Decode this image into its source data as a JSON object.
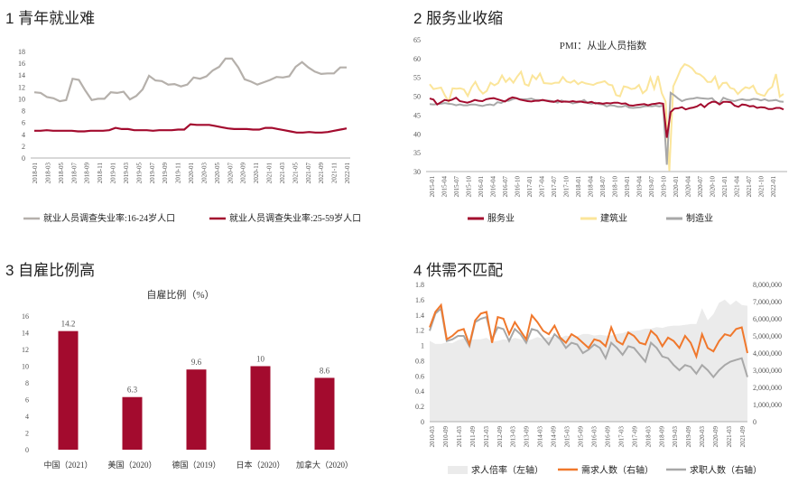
{
  "panels": {
    "p1": {
      "title": "1 青年就业难"
    },
    "p2": {
      "title": "2 服务业收缩"
    },
    "p3": {
      "title": "3 自雇比例高"
    },
    "p4": {
      "title": "4 供需不匹配"
    }
  },
  "colors": {
    "crimson": "#a30b2e",
    "gray": "#b5b0ab",
    "yellow": "#fbe59a",
    "orange": "#f0782c",
    "area": "#ebebeb",
    "line_gray": "#a8a8a8"
  },
  "chart_data": [
    {
      "type": "line",
      "title": "1 青年就业难",
      "ylim": [
        0,
        18
      ],
      "yticks": [
        0,
        2,
        4,
        6,
        8,
        10,
        12,
        14,
        16,
        18
      ],
      "x_tick_labels": [
        "2018-01",
        "2018-03",
        "2018-05",
        "2018-07",
        "2018-09",
        "2018-11",
        "2019-01",
        "2019-03",
        "2019-05",
        "2019-07",
        "2019-09",
        "2019-11",
        "2020-01",
        "2020-03",
        "2020-05",
        "2020-07",
        "2020-09",
        "2020-11",
        "2021-01",
        "2021-03",
        "2021-05",
        "2021-07",
        "2021-09",
        "2021-11",
        "2022-01"
      ],
      "series": [
        {
          "name": "就业人员调查失业率:16-24岁人口",
          "color": "#b5b0ab",
          "values": [
            11.1,
            11.0,
            10.3,
            10.1,
            9.6,
            9.8,
            13.4,
            13.2,
            11.4,
            9.8,
            10.0,
            10.0,
            11.1,
            11.0,
            11.2,
            9.9,
            10.5,
            11.6,
            13.9,
            13.1,
            13.0,
            12.4,
            12.5,
            12.1,
            12.4,
            13.6,
            13.4,
            13.8,
            14.8,
            15.4,
            16.8,
            16.8,
            15.3,
            13.3,
            12.9,
            12.4,
            12.8,
            13.2,
            13.7,
            13.6,
            13.8,
            15.4,
            16.2,
            15.3,
            14.6,
            14.2,
            14.3,
            14.3,
            15.3,
            15.3
          ]
        },
        {
          "name": "就业人员调查失业率:25-59岁人口",
          "color": "#a30b2e",
          "values": [
            4.6,
            4.6,
            4.7,
            4.6,
            4.6,
            4.6,
            4.6,
            4.5,
            4.5,
            4.6,
            4.6,
            4.6,
            4.7,
            5.1,
            4.9,
            4.9,
            4.7,
            4.7,
            4.7,
            4.6,
            4.7,
            4.7,
            4.7,
            4.8,
            4.8,
            5.7,
            5.6,
            5.6,
            5.6,
            5.4,
            5.2,
            5.0,
            4.9,
            4.9,
            4.9,
            4.8,
            4.8,
            5.1,
            5.1,
            4.9,
            4.7,
            4.5,
            4.3,
            4.3,
            4.4,
            4.3,
            4.3,
            4.4,
            4.6,
            4.8,
            5.0
          ]
        }
      ]
    },
    {
      "type": "line",
      "title": "2 服务业收缩",
      "subtitle": "PMI：从业人员指数",
      "ylim": [
        30,
        65
      ],
      "yticks": [
        30,
        35,
        40,
        45,
        50,
        55,
        60,
        65
      ],
      "x_tick_labels": [
        "2015-01",
        "2015-04",
        "2015-07",
        "2015-10",
        "2016-01",
        "2016-04",
        "2016-07",
        "2016-10",
        "2017-01",
        "2017-04",
        "2017-07",
        "2017-10",
        "2018-01",
        "2018-04",
        "2018-07",
        "2018-10",
        "2019-01",
        "2019-04",
        "2019-07",
        "2019-10",
        "2020-01",
        "2020-04",
        "2020-07",
        "2020-10",
        "2021-01",
        "2021-04",
        "2021-07",
        "2021-10",
        "2022-01"
      ],
      "series": [
        {
          "name": "服务业",
          "color": "#a30b2e",
          "values": [
            49.4,
            49.1,
            47.8,
            48.4,
            49.0,
            48.8,
            49.1,
            49.6,
            48.7,
            48.5,
            48.3,
            48.6,
            49.0,
            48.8,
            48.7,
            49.2,
            49.4,
            49.5,
            49.2,
            48.9,
            48.6,
            49.3,
            49.7,
            49.5,
            49.1,
            48.9,
            48.7,
            48.6,
            48.8,
            48.8,
            49.0,
            48.8,
            48.6,
            48.5,
            48.9,
            48.5,
            48.6,
            48.5,
            48.7,
            48.5,
            48.6,
            48.4,
            48.3,
            48.5,
            48.1,
            48.2,
            48.0,
            48.2,
            48.1,
            48.3,
            48.3,
            48.0,
            48.1,
            47.6,
            47.5,
            47.7,
            47.8,
            47.9,
            47.6,
            47.9,
            48.0,
            48.2,
            48.0,
            39.0,
            45.8,
            46.7,
            46.8,
            47.1,
            46.5,
            46.8,
            47.0,
            47.3,
            47.9,
            47.1,
            48.0,
            48.5,
            48.5,
            47.8,
            48.5,
            48.5,
            48.4,
            47.5,
            47.2,
            47.8,
            47.7,
            47.3,
            47.4,
            46.9,
            47.1,
            47.0,
            46.6,
            46.6,
            46.9,
            46.9,
            46.5
          ]
        },
        {
          "name": "建筑业",
          "color": "#fbe59a",
          "values": [
            53.2,
            51.9,
            52.1,
            52.3,
            50.2,
            48.6,
            52.1,
            52.0,
            52.1,
            51.8,
            50.1,
            52.4,
            53.8,
            51.8,
            50.7,
            51.4,
            53.6,
            52.9,
            53.5,
            55.5,
            53.8,
            54.8,
            53.6,
            55.2,
            56.5,
            53.2,
            52.8,
            55.5,
            54.5,
            56.0,
            53.5,
            53.4,
            53.3,
            53.6,
            53.6,
            55.1,
            53.9,
            53.6,
            54.2,
            53.2,
            53.8,
            53.4,
            53.2,
            53.0,
            53.5,
            53.7,
            54.0,
            53.1,
            52.9,
            50.3,
            50.0,
            52.6,
            52.4,
            51.9,
            52.1,
            53.0,
            50.8,
            51.7,
            54.9,
            52.0,
            55.4,
            50.8,
            48.6,
            30.2,
            52.6,
            54.8,
            57.2,
            58.5,
            58.1,
            57.4,
            56.1,
            55.8,
            55.0,
            53.8,
            53.8,
            55.2,
            52.1,
            53.5,
            53.6,
            52.2,
            51.9,
            50.6,
            51.6,
            52.4,
            52.1,
            52.8,
            50.8,
            50.4,
            50.1,
            51.7,
            52.5,
            55.9,
            49.9,
            50.6
          ]
        },
        {
          "name": "制造业",
          "color": "#a8a8a8",
          "values": [
            47.9,
            47.8,
            47.9,
            48.0,
            48.2,
            48.0,
            47.9,
            47.6,
            47.8,
            47.6,
            47.6,
            47.8,
            47.8,
            47.6,
            47.4,
            47.7,
            47.8,
            47.6,
            48.4,
            48.2,
            48.8,
            48.8,
            49.2,
            49.5,
            49.2,
            49.2,
            49.2,
            49.4,
            49.0,
            49.0,
            48.9,
            48.9,
            48.8,
            48.6,
            48.3,
            48.9,
            48.5,
            48.5,
            48.1,
            48.3,
            48.5,
            49.0,
            48.2,
            48.0,
            48.3,
            47.9,
            47.8,
            47.3,
            47.6,
            47.5,
            47.2,
            47.2,
            47.5,
            47.0,
            46.9,
            47.0,
            47.1,
            47.3,
            47.4,
            47.3,
            47.5,
            47.3,
            47.5,
            31.8,
            50.9,
            50.2,
            49.4,
            48.7,
            49.1,
            49.3,
            49.4,
            49.6,
            49.5,
            49.4,
            49.3,
            49.5,
            48.4,
            48.1,
            49.6,
            49.2,
            48.9,
            48.7,
            49.0,
            49.2,
            49.0,
            49.0,
            49.3,
            49.2,
            48.9,
            49.2,
            48.8,
            48.9,
            49.0,
            48.6,
            48.5
          ]
        }
      ]
    },
    {
      "type": "bar",
      "title": "自雇比例（%）",
      "categories": [
        "中国（2021）",
        "美国（2020）",
        "德国（2019）",
        "日本（2020）",
        "加拿大（2020）"
      ],
      "values": [
        14.2,
        6.3,
        9.6,
        10,
        8.6
      ],
      "value_labels": [
        "14.2",
        "6.3",
        "9.6",
        "10",
        "8.6"
      ],
      "ylim": [
        0,
        16
      ],
      "yticks": [
        0,
        2,
        4,
        6,
        8,
        10,
        12,
        14,
        16
      ]
    },
    {
      "type": "area",
      "title": "4 供需不匹配",
      "ylim_left": [
        0,
        1.8
      ],
      "ylim_right": [
        0,
        8000000
      ],
      "yticks_left": [
        0,
        0.2,
        0.4,
        0.6,
        0.8,
        1.0,
        1.2,
        1.4,
        1.6,
        1.8
      ],
      "ytick_labels_left": [
        "0",
        "0.2",
        "0.4",
        "0.6",
        "0.8",
        "1",
        "1.2",
        "1.4",
        "1.6",
        "1.8"
      ],
      "yticks_right": [
        0,
        1000000,
        2000000,
        3000000,
        4000000,
        5000000,
        6000000,
        7000000,
        8000000
      ],
      "ytick_labels_right": [
        "0",
        "1,000,000",
        "2,000,000",
        "3,000,000",
        "4,000,000",
        "5,000,000",
        "6,000,000",
        "7,000,000",
        "8,000,000"
      ],
      "x_tick_labels": [
        "2010-03",
        "2010-09",
        "2011-03",
        "2011-09",
        "2012-03",
        "2012-09",
        "2013-03",
        "2013-09",
        "2014-03",
        "2014-09",
        "2015-03",
        "2015-09",
        "2016-03",
        "2016-09",
        "2017-03",
        "2017-09",
        "2018-03",
        "2018-09",
        "2019-03",
        "2019-09",
        "2020-03",
        "2020-09",
        "2021-03",
        "2021-09"
      ],
      "series": [
        {
          "name": "求人倍率（左轴）",
          "axis": "left",
          "color": "#ebebeb",
          "values": [
            1.06,
            1.02,
            1.02,
            1.04,
            1.03,
            1.07,
            1.09,
            1.07,
            1.08,
            1.08,
            1.1,
            1.05,
            1.06,
            1.08,
            1.07,
            1.1,
            1.08,
            1.06,
            1.08,
            1.11,
            1.09,
            1.11,
            1.11,
            1.1,
            1.13,
            1.12,
            1.12,
            1.15,
            1.15,
            1.13,
            1.14,
            1.13,
            1.13,
            1.15,
            1.16,
            1.19,
            1.19,
            1.2,
            1.22,
            1.22,
            1.24,
            1.23,
            1.25,
            1.26,
            1.26,
            1.27,
            1.28,
            1.28,
            1.49,
            1.33,
            1.41,
            1.56,
            1.6,
            1.53,
            1.59,
            1.53,
            1.52
          ]
        },
        {
          "name": "需求人数（右轴）",
          "axis": "right",
          "color": "#f0782c",
          "values": [
            5500000,
            6400000,
            6800000,
            4800000,
            5000000,
            5300000,
            5400000,
            4500000,
            5900000,
            6300000,
            6400000,
            4600000,
            6100000,
            6000000,
            5100000,
            5800000,
            5300000,
            4800000,
            6200000,
            5800000,
            5300000,
            5100000,
            5600000,
            4900000,
            4600000,
            5100000,
            4900000,
            4600000,
            4300000,
            4800000,
            4700000,
            4400000,
            5500000,
            4700000,
            4500000,
            5200000,
            5000000,
            4600000,
            4500000,
            5300000,
            5000000,
            4400000,
            4900000,
            4700000,
            4300000,
            5000000,
            4600000,
            3800000,
            5100000,
            4300000,
            4100000,
            4700000,
            5100000,
            5000000,
            5400000,
            5500000,
            4000000
          ]
        },
        {
          "name": "求职人数（右轴）",
          "axis": "right",
          "color": "#a8a8a8",
          "values": [
            5300000,
            6300000,
            6600000,
            4700000,
            4800000,
            5000000,
            5000000,
            4400000,
            5800000,
            6000000,
            6100000,
            4800000,
            5500000,
            5400000,
            4700000,
            5400000,
            5100000,
            4600000,
            5400000,
            5300000,
            4900000,
            4500000,
            5100000,
            4800000,
            4300000,
            4600000,
            4500000,
            4000000,
            4200000,
            4500000,
            4300000,
            3700000,
            4600000,
            4300000,
            3900000,
            4400000,
            4300000,
            3900000,
            3500000,
            4600000,
            4300000,
            3800000,
            3700000,
            3300000,
            3000000,
            3300000,
            3200000,
            2800000,
            3300000,
            3000000,
            2600000,
            3000000,
            3300000,
            3500000,
            3600000,
            3700000,
            2600000
          ]
        }
      ]
    }
  ]
}
